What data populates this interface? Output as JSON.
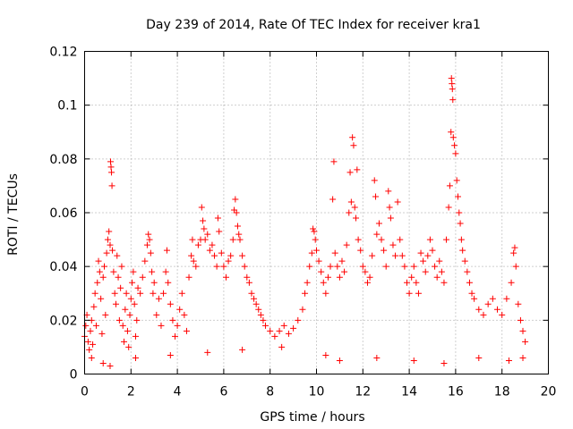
{
  "chart_data": {
    "type": "scatter",
    "title": "Day 239 of 2014, Rate Of TEC Index for receiver kra1",
    "xlabel": "GPS time / hours",
    "ylabel": "ROTI / TECUs",
    "xlim": [
      0,
      20
    ],
    "ylim": [
      0,
      0.12
    ],
    "x_ticks": [
      0,
      2,
      4,
      6,
      8,
      10,
      12,
      14,
      16,
      18,
      20
    ],
    "y_ticks": [
      0,
      0.02,
      0.04,
      0.06,
      0.08,
      0.1,
      0.12
    ],
    "x_tick_labels": [
      "0",
      "2",
      "4",
      "6",
      "8",
      "10",
      "12",
      "14",
      "16",
      "18",
      "20"
    ],
    "y_tick_labels": [
      "0",
      "0.02",
      "0.04",
      "0.06",
      "0.08",
      "0.1",
      "0.12"
    ],
    "grid": true,
    "marker": "+",
    "series_color": "#ff0000",
    "series": [
      {
        "name": "ROTI",
        "points": [
          [
            0.0,
            0.014
          ],
          [
            0.05,
            0.018
          ],
          [
            0.1,
            0.022
          ],
          [
            0.15,
            0.012
          ],
          [
            0.2,
            0.009
          ],
          [
            0.25,
            0.016
          ],
          [
            0.3,
            0.02
          ],
          [
            0.35,
            0.011
          ],
          [
            0.4,
            0.025
          ],
          [
            0.45,
            0.03
          ],
          [
            0.5,
            0.018
          ],
          [
            0.55,
            0.034
          ],
          [
            0.6,
            0.042
          ],
          [
            0.65,
            0.038
          ],
          [
            0.7,
            0.028
          ],
          [
            0.75,
            0.015
          ],
          [
            0.8,
            0.036
          ],
          [
            0.85,
            0.04
          ],
          [
            0.9,
            0.022
          ],
          [
            0.95,
            0.045
          ],
          [
            1.0,
            0.05
          ],
          [
            1.05,
            0.053
          ],
          [
            1.1,
            0.048
          ],
          [
            1.12,
            0.079
          ],
          [
            1.14,
            0.077
          ],
          [
            1.16,
            0.075
          ],
          [
            1.18,
            0.07
          ],
          [
            1.2,
            0.046
          ],
          [
            1.25,
            0.038
          ],
          [
            1.3,
            0.03
          ],
          [
            1.35,
            0.026
          ],
          [
            1.4,
            0.044
          ],
          [
            1.45,
            0.036
          ],
          [
            1.5,
            0.02
          ],
          [
            1.55,
            0.032
          ],
          [
            1.6,
            0.04
          ],
          [
            1.65,
            0.018
          ],
          [
            1.7,
            0.012
          ],
          [
            1.75,
            0.024
          ],
          [
            1.8,
            0.03
          ],
          [
            1.85,
            0.016
          ],
          [
            1.9,
            0.01
          ],
          [
            1.95,
            0.022
          ],
          [
            2.0,
            0.028
          ],
          [
            2.05,
            0.034
          ],
          [
            2.1,
            0.038
          ],
          [
            2.15,
            0.026
          ],
          [
            2.2,
            0.014
          ],
          [
            2.25,
            0.02
          ],
          [
            2.3,
            0.032
          ],
          [
            2.4,
            0.03
          ],
          [
            2.5,
            0.036
          ],
          [
            2.6,
            0.042
          ],
          [
            2.7,
            0.048
          ],
          [
            2.75,
            0.052
          ],
          [
            2.8,
            0.05
          ],
          [
            2.85,
            0.045
          ],
          [
            2.9,
            0.038
          ],
          [
            2.95,
            0.03
          ],
          [
            3.0,
            0.034
          ],
          [
            3.1,
            0.022
          ],
          [
            3.2,
            0.028
          ],
          [
            3.3,
            0.018
          ],
          [
            3.4,
            0.03
          ],
          [
            3.5,
            0.038
          ],
          [
            3.55,
            0.046
          ],
          [
            3.6,
            0.034
          ],
          [
            3.7,
            0.026
          ],
          [
            3.8,
            0.02
          ],
          [
            3.9,
            0.014
          ],
          [
            4.0,
            0.018
          ],
          [
            4.1,
            0.024
          ],
          [
            4.2,
            0.03
          ],
          [
            4.3,
            0.022
          ],
          [
            4.4,
            0.016
          ],
          [
            4.5,
            0.036
          ],
          [
            4.6,
            0.044
          ],
          [
            4.65,
            0.05
          ],
          [
            4.7,
            0.042
          ],
          [
            4.8,
            0.04
          ],
          [
            4.9,
            0.048
          ],
          [
            5.0,
            0.05
          ],
          [
            5.05,
            0.062
          ],
          [
            5.1,
            0.057
          ],
          [
            5.15,
            0.054
          ],
          [
            5.2,
            0.05
          ],
          [
            5.3,
            0.052
          ],
          [
            5.4,
            0.046
          ],
          [
            5.5,
            0.048
          ],
          [
            5.6,
            0.044
          ],
          [
            5.7,
            0.04
          ],
          [
            5.75,
            0.058
          ],
          [
            5.8,
            0.053
          ],
          [
            5.9,
            0.045
          ],
          [
            6.0,
            0.04
          ],
          [
            6.1,
            0.036
          ],
          [
            6.2,
            0.042
          ],
          [
            6.3,
            0.044
          ],
          [
            6.4,
            0.05
          ],
          [
            6.45,
            0.061
          ],
          [
            6.5,
            0.065
          ],
          [
            6.55,
            0.06
          ],
          [
            6.6,
            0.055
          ],
          [
            6.65,
            0.052
          ],
          [
            6.7,
            0.05
          ],
          [
            6.8,
            0.044
          ],
          [
            6.9,
            0.04
          ],
          [
            7.0,
            0.036
          ],
          [
            7.1,
            0.034
          ],
          [
            7.2,
            0.03
          ],
          [
            7.3,
            0.028
          ],
          [
            7.4,
            0.026
          ],
          [
            7.5,
            0.024
          ],
          [
            7.6,
            0.022
          ],
          [
            7.7,
            0.02
          ],
          [
            7.8,
            0.018
          ],
          [
            8.0,
            0.016
          ],
          [
            8.2,
            0.014
          ],
          [
            8.4,
            0.016
          ],
          [
            8.6,
            0.018
          ],
          [
            8.8,
            0.015
          ],
          [
            9.0,
            0.017
          ],
          [
            9.2,
            0.02
          ],
          [
            9.4,
            0.024
          ],
          [
            9.5,
            0.03
          ],
          [
            9.6,
            0.034
          ],
          [
            9.7,
            0.04
          ],
          [
            9.8,
            0.045
          ],
          [
            9.85,
            0.054
          ],
          [
            9.9,
            0.053
          ],
          [
            9.95,
            0.05
          ],
          [
            10.0,
            0.046
          ],
          [
            10.1,
            0.042
          ],
          [
            10.2,
            0.038
          ],
          [
            10.3,
            0.034
          ],
          [
            10.4,
            0.03
          ],
          [
            10.5,
            0.036
          ],
          [
            10.6,
            0.04
          ],
          [
            10.7,
            0.065
          ],
          [
            10.75,
            0.079
          ],
          [
            10.8,
            0.045
          ],
          [
            10.9,
            0.04
          ],
          [
            11.0,
            0.036
          ],
          [
            11.1,
            0.042
          ],
          [
            11.2,
            0.038
          ],
          [
            11.3,
            0.048
          ],
          [
            11.4,
            0.06
          ],
          [
            11.45,
            0.075
          ],
          [
            11.5,
            0.064
          ],
          [
            11.55,
            0.088
          ],
          [
            11.6,
            0.085
          ],
          [
            11.65,
            0.062
          ],
          [
            11.7,
            0.058
          ],
          [
            11.75,
            0.076
          ],
          [
            11.8,
            0.05
          ],
          [
            11.9,
            0.046
          ],
          [
            12.0,
            0.04
          ],
          [
            12.1,
            0.038
          ],
          [
            12.2,
            0.034
          ],
          [
            12.3,
            0.036
          ],
          [
            12.4,
            0.044
          ],
          [
            12.5,
            0.072
          ],
          [
            12.55,
            0.066
          ],
          [
            12.6,
            0.052
          ],
          [
            12.7,
            0.056
          ],
          [
            12.8,
            0.05
          ],
          [
            12.9,
            0.046
          ],
          [
            13.0,
            0.04
          ],
          [
            13.1,
            0.068
          ],
          [
            13.15,
            0.062
          ],
          [
            13.2,
            0.058
          ],
          [
            13.3,
            0.048
          ],
          [
            13.4,
            0.044
          ],
          [
            13.5,
            0.064
          ],
          [
            13.6,
            0.05
          ],
          [
            13.7,
            0.044
          ],
          [
            13.8,
            0.04
          ],
          [
            13.9,
            0.034
          ],
          [
            14.0,
            0.03
          ],
          [
            14.1,
            0.036
          ],
          [
            14.2,
            0.04
          ],
          [
            14.3,
            0.034
          ],
          [
            14.4,
            0.03
          ],
          [
            14.5,
            0.045
          ],
          [
            14.6,
            0.042
          ],
          [
            14.7,
            0.038
          ],
          [
            14.8,
            0.044
          ],
          [
            14.9,
            0.05
          ],
          [
            15.0,
            0.046
          ],
          [
            15.1,
            0.04
          ],
          [
            15.2,
            0.036
          ],
          [
            15.3,
            0.042
          ],
          [
            15.4,
            0.038
          ],
          [
            15.5,
            0.034
          ],
          [
            15.6,
            0.05
          ],
          [
            15.7,
            0.062
          ],
          [
            15.75,
            0.07
          ],
          [
            15.8,
            0.09
          ],
          [
            15.82,
            0.11
          ],
          [
            15.84,
            0.108
          ],
          [
            15.86,
            0.106
          ],
          [
            15.88,
            0.102
          ],
          [
            15.9,
            0.088
          ],
          [
            15.95,
            0.085
          ],
          [
            16.0,
            0.082
          ],
          [
            16.05,
            0.072
          ],
          [
            16.1,
            0.066
          ],
          [
            16.15,
            0.06
          ],
          [
            16.2,
            0.056
          ],
          [
            16.25,
            0.05
          ],
          [
            16.3,
            0.046
          ],
          [
            16.4,
            0.042
          ],
          [
            16.5,
            0.038
          ],
          [
            16.6,
            0.034
          ],
          [
            16.7,
            0.03
          ],
          [
            16.8,
            0.028
          ],
          [
            17.0,
            0.024
          ],
          [
            17.2,
            0.022
          ],
          [
            17.4,
            0.026
          ],
          [
            17.6,
            0.028
          ],
          [
            17.8,
            0.024
          ],
          [
            18.0,
            0.022
          ],
          [
            18.2,
            0.028
          ],
          [
            18.4,
            0.034
          ],
          [
            18.5,
            0.045
          ],
          [
            18.55,
            0.047
          ],
          [
            18.6,
            0.04
          ],
          [
            18.7,
            0.026
          ],
          [
            18.8,
            0.02
          ],
          [
            18.9,
            0.016
          ],
          [
            19.0,
            0.012
          ],
          [
            0.3,
            0.006
          ],
          [
            0.8,
            0.004
          ],
          [
            1.1,
            0.003
          ],
          [
            2.2,
            0.006
          ],
          [
            3.7,
            0.007
          ],
          [
            5.3,
            0.008
          ],
          [
            6.8,
            0.009
          ],
          [
            8.5,
            0.01
          ],
          [
            10.4,
            0.007
          ],
          [
            11.0,
            0.005
          ],
          [
            12.6,
            0.006
          ],
          [
            14.2,
            0.005
          ],
          [
            15.5,
            0.004
          ],
          [
            17.0,
            0.006
          ],
          [
            18.3,
            0.005
          ],
          [
            18.9,
            0.006
          ]
        ]
      }
    ]
  }
}
